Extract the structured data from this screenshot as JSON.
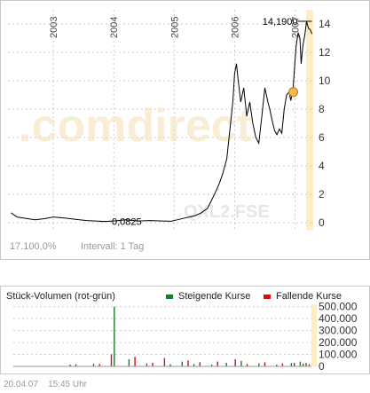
{
  "watermark": ".comdirect",
  "symbol": "QXL2.FSE",
  "info": {
    "change": "17.100,0%",
    "interval": "Intervall: 1 Tag"
  },
  "footer": {
    "date": "20.04.07",
    "time": "15:45 Uhr"
  },
  "colors": {
    "price_line": "#000000",
    "rising": "#1a7a2e",
    "falling": "#cc1111",
    "axis_band": "#ffedc2",
    "grid": "#cccccc"
  },
  "chart_data": [
    {
      "type": "line",
      "title": "",
      "xlabel": "",
      "ylabel": "",
      "x_ticks": [
        "2003",
        "2004",
        "2005",
        "2006",
        "2007"
      ],
      "y_ticks": [
        0,
        2,
        4,
        6,
        8,
        10,
        12,
        14
      ],
      "ylim": [
        -0.5,
        15
      ],
      "grid": true,
      "annotations": {
        "max_label": "14,1900",
        "min_label": "0,0825"
      },
      "series": [
        {
          "name": "QXL2.FSE",
          "x": [
            2002.3,
            2002.4,
            2002.55,
            2002.7,
            2002.85,
            2003.0,
            2003.2,
            2003.4,
            2003.55,
            2003.7,
            2003.85,
            2004.0,
            2004.2,
            2004.4,
            2004.6,
            2004.8,
            2004.95,
            2005.05,
            2005.15,
            2005.25,
            2005.35,
            2005.45,
            2005.55,
            2005.62,
            2005.7,
            2005.75,
            2005.8,
            2005.87,
            2005.92,
            2005.97,
            2006.0,
            2006.03,
            2006.06,
            2006.1,
            2006.15,
            2006.2,
            2006.25,
            2006.3,
            2006.35,
            2006.4,
            2006.45,
            2006.5,
            2006.55,
            2006.58,
            2006.62,
            2006.66,
            2006.7,
            2006.74,
            2006.78,
            2006.82,
            2006.86,
            2006.9,
            2006.93,
            2006.97,
            2007.0,
            2007.02,
            2007.05,
            2007.08,
            2007.1,
            2007.13,
            2007.16,
            2007.19,
            2007.22,
            2007.25,
            2007.28
          ],
          "values": [
            0.7,
            0.4,
            0.3,
            0.2,
            0.28,
            0.4,
            0.32,
            0.22,
            0.15,
            0.12,
            0.09,
            0.12,
            0.2,
            0.12,
            0.15,
            0.12,
            0.1,
            0.2,
            0.3,
            0.4,
            0.5,
            0.7,
            1.0,
            1.6,
            2.3,
            2.8,
            3.4,
            4.5,
            6.5,
            8.5,
            10.5,
            11.2,
            10.0,
            8.5,
            9.5,
            7.5,
            8.5,
            7.0,
            6.0,
            5.6,
            7.5,
            9.5,
            8.5,
            8.0,
            7.2,
            6.5,
            6.2,
            6.6,
            6.3,
            8.0,
            9.0,
            9.2,
            8.6,
            9.6,
            11.5,
            12.5,
            13.4,
            13.0,
            11.2,
            12.5,
            13.2,
            14.19,
            13.7,
            13.6,
            13.3
          ]
        }
      ]
    },
    {
      "type": "bar",
      "title": "Stück-Volumen (rot-grün)",
      "legend": [
        "Steigende Kurse",
        "Fallende Kurse"
      ],
      "y_ticks": [
        0,
        100000,
        200000,
        300000,
        400000,
        500000
      ],
      "y_tick_labels": [
        "0",
        "100.000",
        "200.000",
        "300.000",
        "400.000",
        "500.000"
      ],
      "ylim": [
        0,
        520000
      ],
      "series": [
        {
          "name": "Steigende Kurse",
          "x": [
            2003.2,
            2003.6,
            2003.95,
            2004.2,
            2004.5,
            2004.9,
            2005.1,
            2005.3,
            2005.6,
            2005.85,
            2006.1,
            2006.4,
            2006.7,
            2006.95,
            2007.1,
            2007.2
          ],
          "values": [
            15000,
            22000,
            500000,
            60000,
            25000,
            18000,
            40000,
            20000,
            15000,
            30000,
            45000,
            25000,
            15000,
            28000,
            40000,
            30000
          ]
        },
        {
          "name": "Fallende Kurse",
          "x": [
            2003.3,
            2003.7,
            2003.9,
            2004.3,
            2004.6,
            2004.8,
            2005.2,
            2005.4,
            2005.7,
            2006.0,
            2006.2,
            2006.5,
            2006.8,
            2007.0,
            2007.15,
            2007.25
          ],
          "values": [
            18000,
            20000,
            100000,
            80000,
            30000,
            70000,
            50000,
            35000,
            40000,
            60000,
            20000,
            35000,
            25000,
            30000,
            22000,
            18000
          ]
        }
      ]
    }
  ]
}
